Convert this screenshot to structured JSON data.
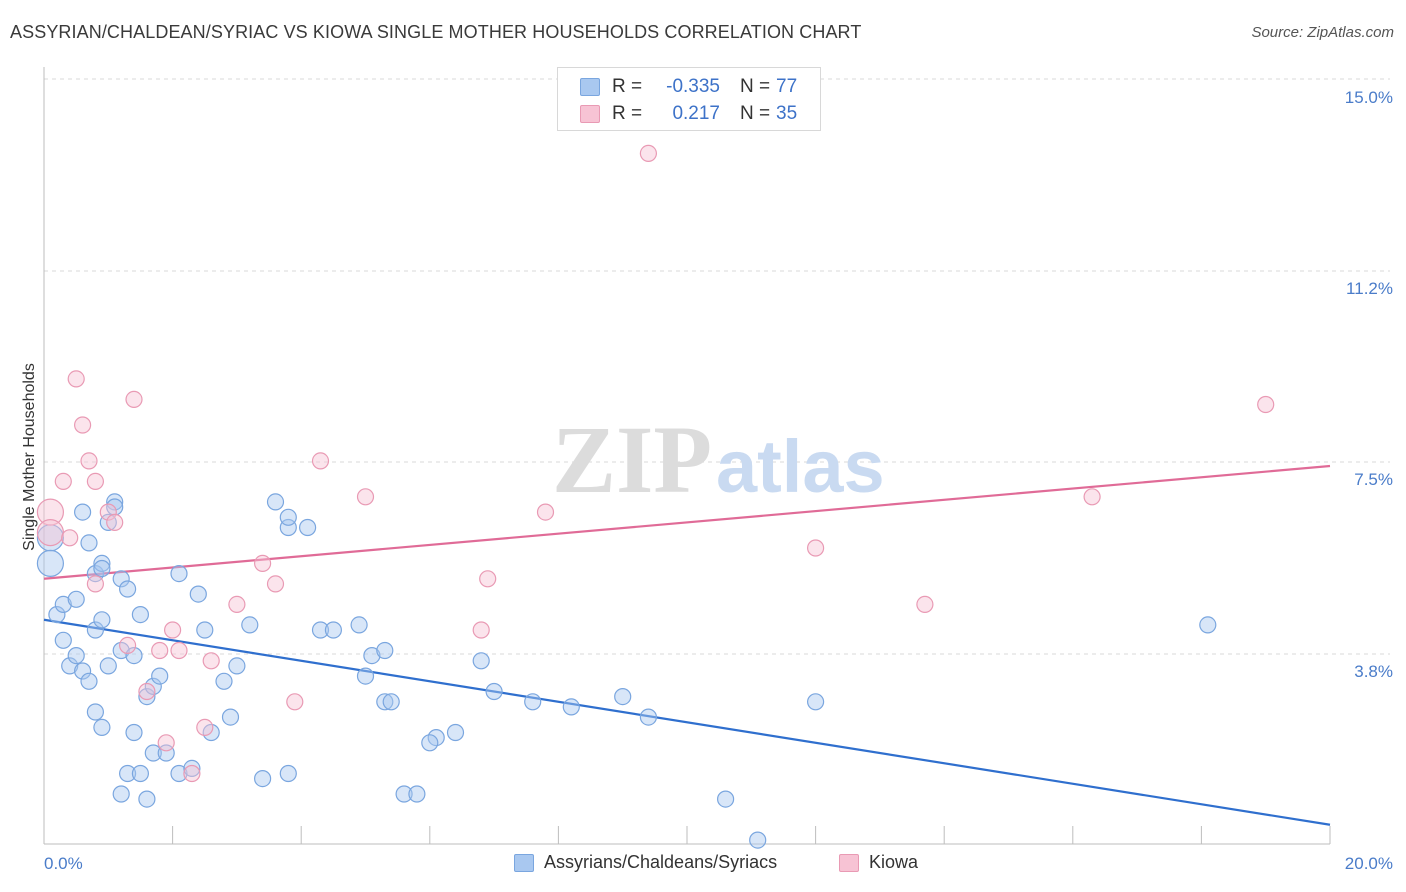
{
  "title": "ASSYRIAN/CHALDEAN/SYRIAC VS KIOWA SINGLE MOTHER HOUSEHOLDS CORRELATION CHART",
  "source": "Source: ZipAtlas.com",
  "watermark": {
    "zip": "ZIP",
    "atlas": "atlas"
  },
  "legend": {
    "rows": [
      {
        "r_label": "R =",
        "r_value": "-0.335",
        "n_label": "N =",
        "n_value": "77",
        "color": "#a9c8f0",
        "border": "#7aa6df"
      },
      {
        "r_label": "R =",
        "r_value": "0.217",
        "n_label": "N =",
        "n_value": "35",
        "color": "#f7c3d4",
        "border": "#e99ab4"
      }
    ]
  },
  "bottom_legend": [
    {
      "label": "Assyrians/Chaldeans/Syriacs",
      "color": "#a9c8f0",
      "border": "#7aa6df"
    },
    {
      "label": "Kiowa",
      "color": "#f7c3d4",
      "border": "#e99ab4"
    }
  ],
  "chart_data": {
    "type": "scatter",
    "title": "ASSYRIAN/CHALDEAN/SYRIAC VS KIOWA SINGLE MOTHER HOUSEHOLDS CORRELATION CHART",
    "xlabel": "",
    "ylabel": "Single Mother Households",
    "xlim": [
      0,
      20
    ],
    "ylim": [
      0,
      15.5
    ],
    "x_tick_labels": [
      "0.0%",
      "20.0%"
    ],
    "y_ticks": [
      3.8,
      7.5,
      11.2,
      15.0
    ],
    "y_tick_labels": [
      "3.8%",
      "7.5%",
      "11.2%",
      "15.0%"
    ],
    "grid": true,
    "series": [
      {
        "name": "Assyrians/Chaldeans/Syriacs",
        "color": "#7aa6df",
        "fill": "#a9c8f0",
        "trend": {
          "x": [
            0,
            20
          ],
          "y": [
            4.8,
            0.8
          ],
          "color": "#2f6fce"
        },
        "points": [
          [
            0.1,
            6.4
          ],
          [
            0.1,
            5.9
          ],
          [
            0.2,
            4.9
          ],
          [
            0.3,
            5.1
          ],
          [
            0.3,
            4.4
          ],
          [
            0.5,
            5.2
          ],
          [
            0.6,
            6.9
          ],
          [
            0.7,
            6.3
          ],
          [
            0.8,
            5.7
          ],
          [
            0.9,
            5.9
          ],
          [
            0.9,
            5.8
          ],
          [
            1.0,
            6.7
          ],
          [
            1.1,
            7.1
          ],
          [
            1.1,
            7.0
          ],
          [
            1.2,
            5.6
          ],
          [
            1.3,
            5.4
          ],
          [
            0.4,
            3.9
          ],
          [
            0.5,
            4.1
          ],
          [
            0.6,
            3.8
          ],
          [
            0.7,
            3.6
          ],
          [
            0.8,
            4.6
          ],
          [
            0.9,
            4.8
          ],
          [
            1.0,
            3.9
          ],
          [
            1.2,
            4.2
          ],
          [
            1.4,
            4.1
          ],
          [
            1.5,
            4.9
          ],
          [
            1.6,
            3.3
          ],
          [
            1.7,
            3.5
          ],
          [
            0.8,
            3.0
          ],
          [
            0.9,
            2.7
          ],
          [
            1.8,
            3.7
          ],
          [
            1.4,
            2.6
          ],
          [
            1.7,
            2.2
          ],
          [
            1.9,
            2.2
          ],
          [
            2.1,
            1.8
          ],
          [
            2.3,
            1.9
          ],
          [
            1.3,
            1.8
          ],
          [
            1.5,
            1.8
          ],
          [
            1.6,
            1.3
          ],
          [
            1.2,
            1.4
          ],
          [
            2.1,
            5.7
          ],
          [
            2.4,
            5.3
          ],
          [
            2.5,
            4.6
          ],
          [
            3.2,
            4.7
          ],
          [
            2.8,
            3.6
          ],
          [
            3.0,
            3.9
          ],
          [
            2.6,
            2.6
          ],
          [
            2.9,
            2.9
          ],
          [
            3.4,
            1.7
          ],
          [
            3.8,
            1.8
          ],
          [
            3.6,
            7.1
          ],
          [
            3.8,
            6.6
          ],
          [
            4.1,
            6.6
          ],
          [
            3.8,
            6.8
          ],
          [
            4.3,
            4.6
          ],
          [
            4.5,
            4.6
          ],
          [
            4.9,
            4.7
          ],
          [
            5.1,
            4.1
          ],
          [
            5.3,
            4.2
          ],
          [
            5.0,
            3.7
          ],
          [
            5.3,
            3.2
          ],
          [
            5.4,
            3.2
          ],
          [
            6.1,
            2.5
          ],
          [
            6.4,
            2.6
          ],
          [
            6.8,
            4.0
          ],
          [
            6.0,
            2.4
          ],
          [
            5.6,
            1.4
          ],
          [
            5.8,
            1.4
          ],
          [
            9.0,
            3.3
          ],
          [
            9.4,
            2.9
          ],
          [
            8.2,
            3.1
          ],
          [
            7.6,
            3.2
          ],
          [
            7.0,
            3.4
          ],
          [
            10.6,
            1.3
          ],
          [
            11.1,
            0.5
          ],
          [
            12.0,
            3.2
          ],
          [
            18.1,
            4.7
          ]
        ]
      },
      {
        "name": "Kiowa",
        "color": "#e99ab4",
        "fill": "#f7c3d4",
        "trend": {
          "x": [
            0,
            20
          ],
          "y": [
            5.6,
            7.8
          ],
          "color": "#e06b97"
        },
        "points": [
          [
            0.1,
            6.9
          ],
          [
            0.1,
            6.5
          ],
          [
            0.3,
            7.5
          ],
          [
            0.5,
            9.5
          ],
          [
            0.6,
            8.6
          ],
          [
            0.7,
            7.9
          ],
          [
            0.8,
            7.5
          ],
          [
            1.0,
            6.9
          ],
          [
            0.8,
            5.5
          ],
          [
            1.3,
            4.3
          ],
          [
            0.4,
            6.4
          ],
          [
            1.4,
            9.1
          ],
          [
            1.6,
            3.4
          ],
          [
            1.8,
            4.2
          ],
          [
            2.1,
            4.2
          ],
          [
            2.3,
            1.8
          ],
          [
            2.5,
            2.7
          ],
          [
            2.6,
            4.0
          ],
          [
            3.0,
            5.1
          ],
          [
            3.4,
            5.9
          ],
          [
            3.6,
            5.5
          ],
          [
            3.9,
            3.2
          ],
          [
            4.3,
            7.9
          ],
          [
            5.0,
            7.2
          ],
          [
            6.8,
            4.6
          ],
          [
            6.9,
            5.6
          ],
          [
            7.8,
            6.9
          ],
          [
            9.4,
            13.9
          ],
          [
            12.0,
            6.2
          ],
          [
            13.7,
            5.1
          ],
          [
            16.3,
            7.2
          ],
          [
            19.0,
            9.0
          ],
          [
            1.9,
            2.4
          ],
          [
            2.0,
            4.6
          ],
          [
            1.1,
            6.7
          ]
        ]
      }
    ]
  }
}
